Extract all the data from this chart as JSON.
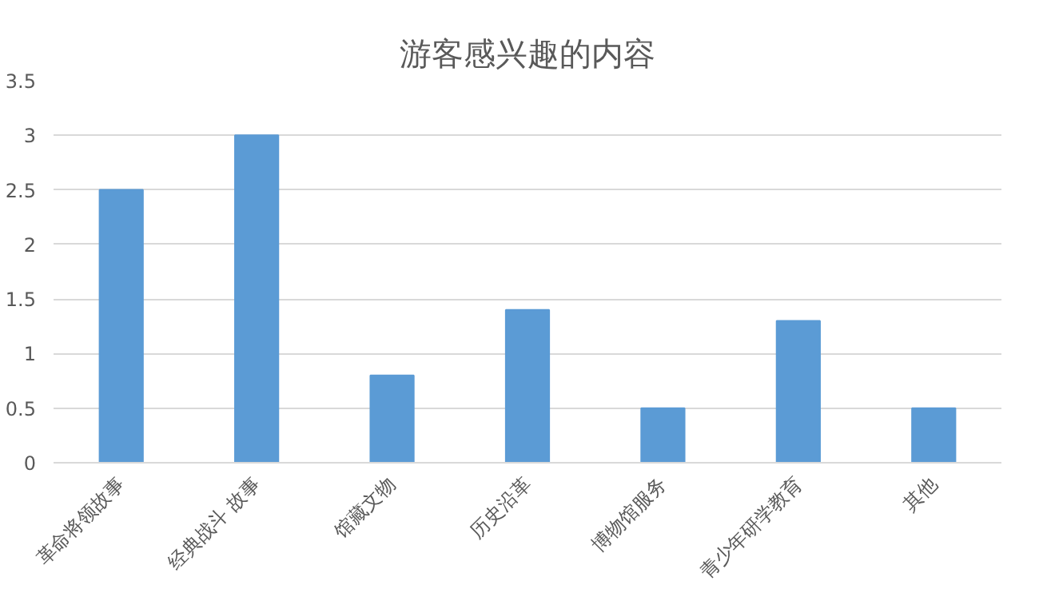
{
  "chart_data": {
    "type": "bar",
    "title": "游客感兴趣的内容",
    "categories": [
      "革命将领故事",
      "经典战斗 故事",
      "馆藏文物",
      "历史沿革",
      "博物馆服务",
      "青少年研学教育",
      "其他"
    ],
    "values": [
      2.5,
      3,
      0.8,
      1.4,
      0.5,
      1.3,
      0.5
    ],
    "color": "#5b9bd5",
    "ylim": [
      0,
      3.5
    ],
    "yticks": [
      0,
      0.5,
      1,
      1.5,
      2,
      2.5,
      3,
      3.5
    ],
    "grid": "y"
  }
}
